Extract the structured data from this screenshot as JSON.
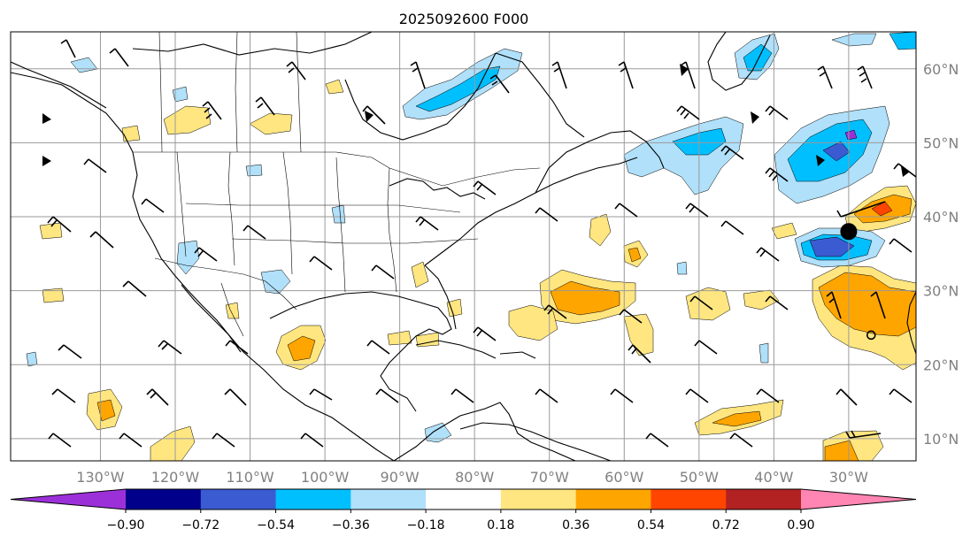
{
  "title": "2025092600 F000",
  "map": {
    "lon_range": [
      -142,
      -21
    ],
    "lat_range": [
      7,
      65
    ],
    "lon_ticks": [
      -130,
      -120,
      -110,
      -100,
      -90,
      -80,
      -70,
      -60,
      -50,
      -40,
      -30
    ],
    "lon_labels": [
      "130°W",
      "120°W",
      "110°W",
      "100°W",
      "90°W",
      "80°W",
      "70°W",
      "60°W",
      "50°W",
      "40°W",
      "30°W"
    ],
    "lat_ticks": [
      10,
      20,
      30,
      40,
      50,
      60
    ],
    "lat_labels": [
      "10°N",
      "20°N",
      "30°N",
      "40°N",
      "50°N",
      "60°N"
    ],
    "grid": true,
    "tick_label_color": "#808080"
  },
  "colorbar": {
    "levels": [
      "−0.90",
      "−0.72",
      "−0.54",
      "−0.36",
      "−0.18",
      "0.18",
      "0.36",
      "0.54",
      "0.72",
      "0.90"
    ],
    "colors": [
      "#9b30d9",
      "#00008b",
      "#3a5bd1",
      "#00bfff",
      "#b0e0fa",
      "#ffffff",
      "#ffe680",
      "#ffa500",
      "#ff4500",
      "#b22222",
      "#ff85b3"
    ],
    "extend": "both"
  },
  "markers": [
    {
      "name": "filled-circle",
      "lon": -30,
      "lat": 38
    },
    {
      "name": "open-circle",
      "lon": -27,
      "lat": 24
    }
  ]
}
